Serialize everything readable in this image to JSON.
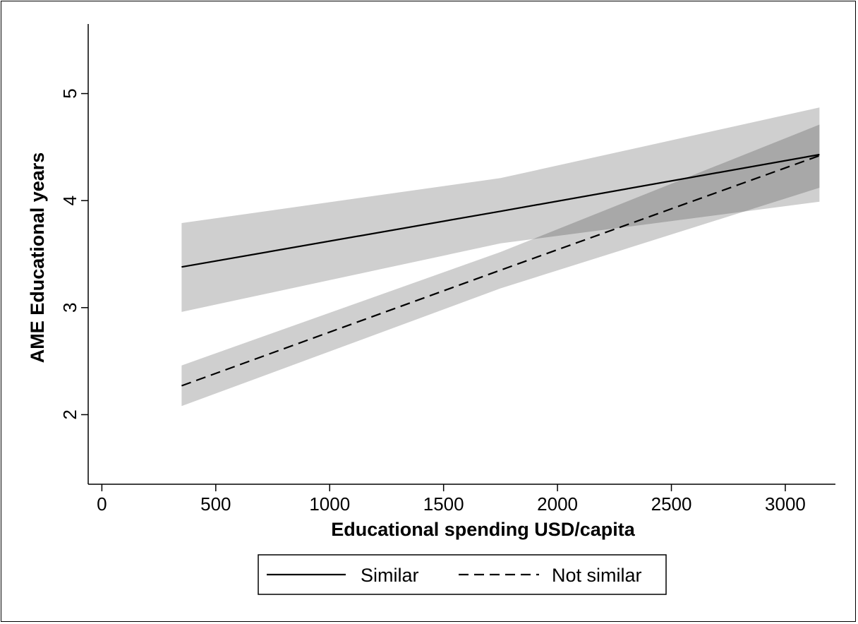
{
  "chart_data": {
    "type": "line",
    "xlabel": "Educational spending USD/capita",
    "ylabel": "AME Educational years",
    "xlim": [
      -60,
      3220
    ],
    "ylim": [
      1.35,
      5.65
    ],
    "xticks": [
      0,
      500,
      1000,
      1500,
      2000,
      2500,
      3000
    ],
    "yticks": [
      2,
      3,
      4,
      5
    ],
    "grid": false,
    "legend_position": "bottom",
    "series": [
      {
        "name": "Similar",
        "style": "solid",
        "x": [
          350,
          1750,
          3150
        ],
        "y": [
          3.38,
          3.9,
          4.43
        ],
        "ci_lower": [
          2.96,
          3.6,
          3.99
        ],
        "ci_upper": [
          3.79,
          4.21,
          4.87
        ],
        "band_color": "#cfcfcf"
      },
      {
        "name": "Not similar",
        "style": "dashed",
        "x": [
          350,
          1750,
          3150
        ],
        "y": [
          2.27,
          3.35,
          4.42
        ],
        "ci_lower": [
          2.08,
          3.18,
          4.12
        ],
        "ci_upper": [
          2.46,
          3.52,
          4.71
        ],
        "band_color": "#cfcfcf"
      }
    ],
    "overlap_color": "#a8a8a8"
  }
}
